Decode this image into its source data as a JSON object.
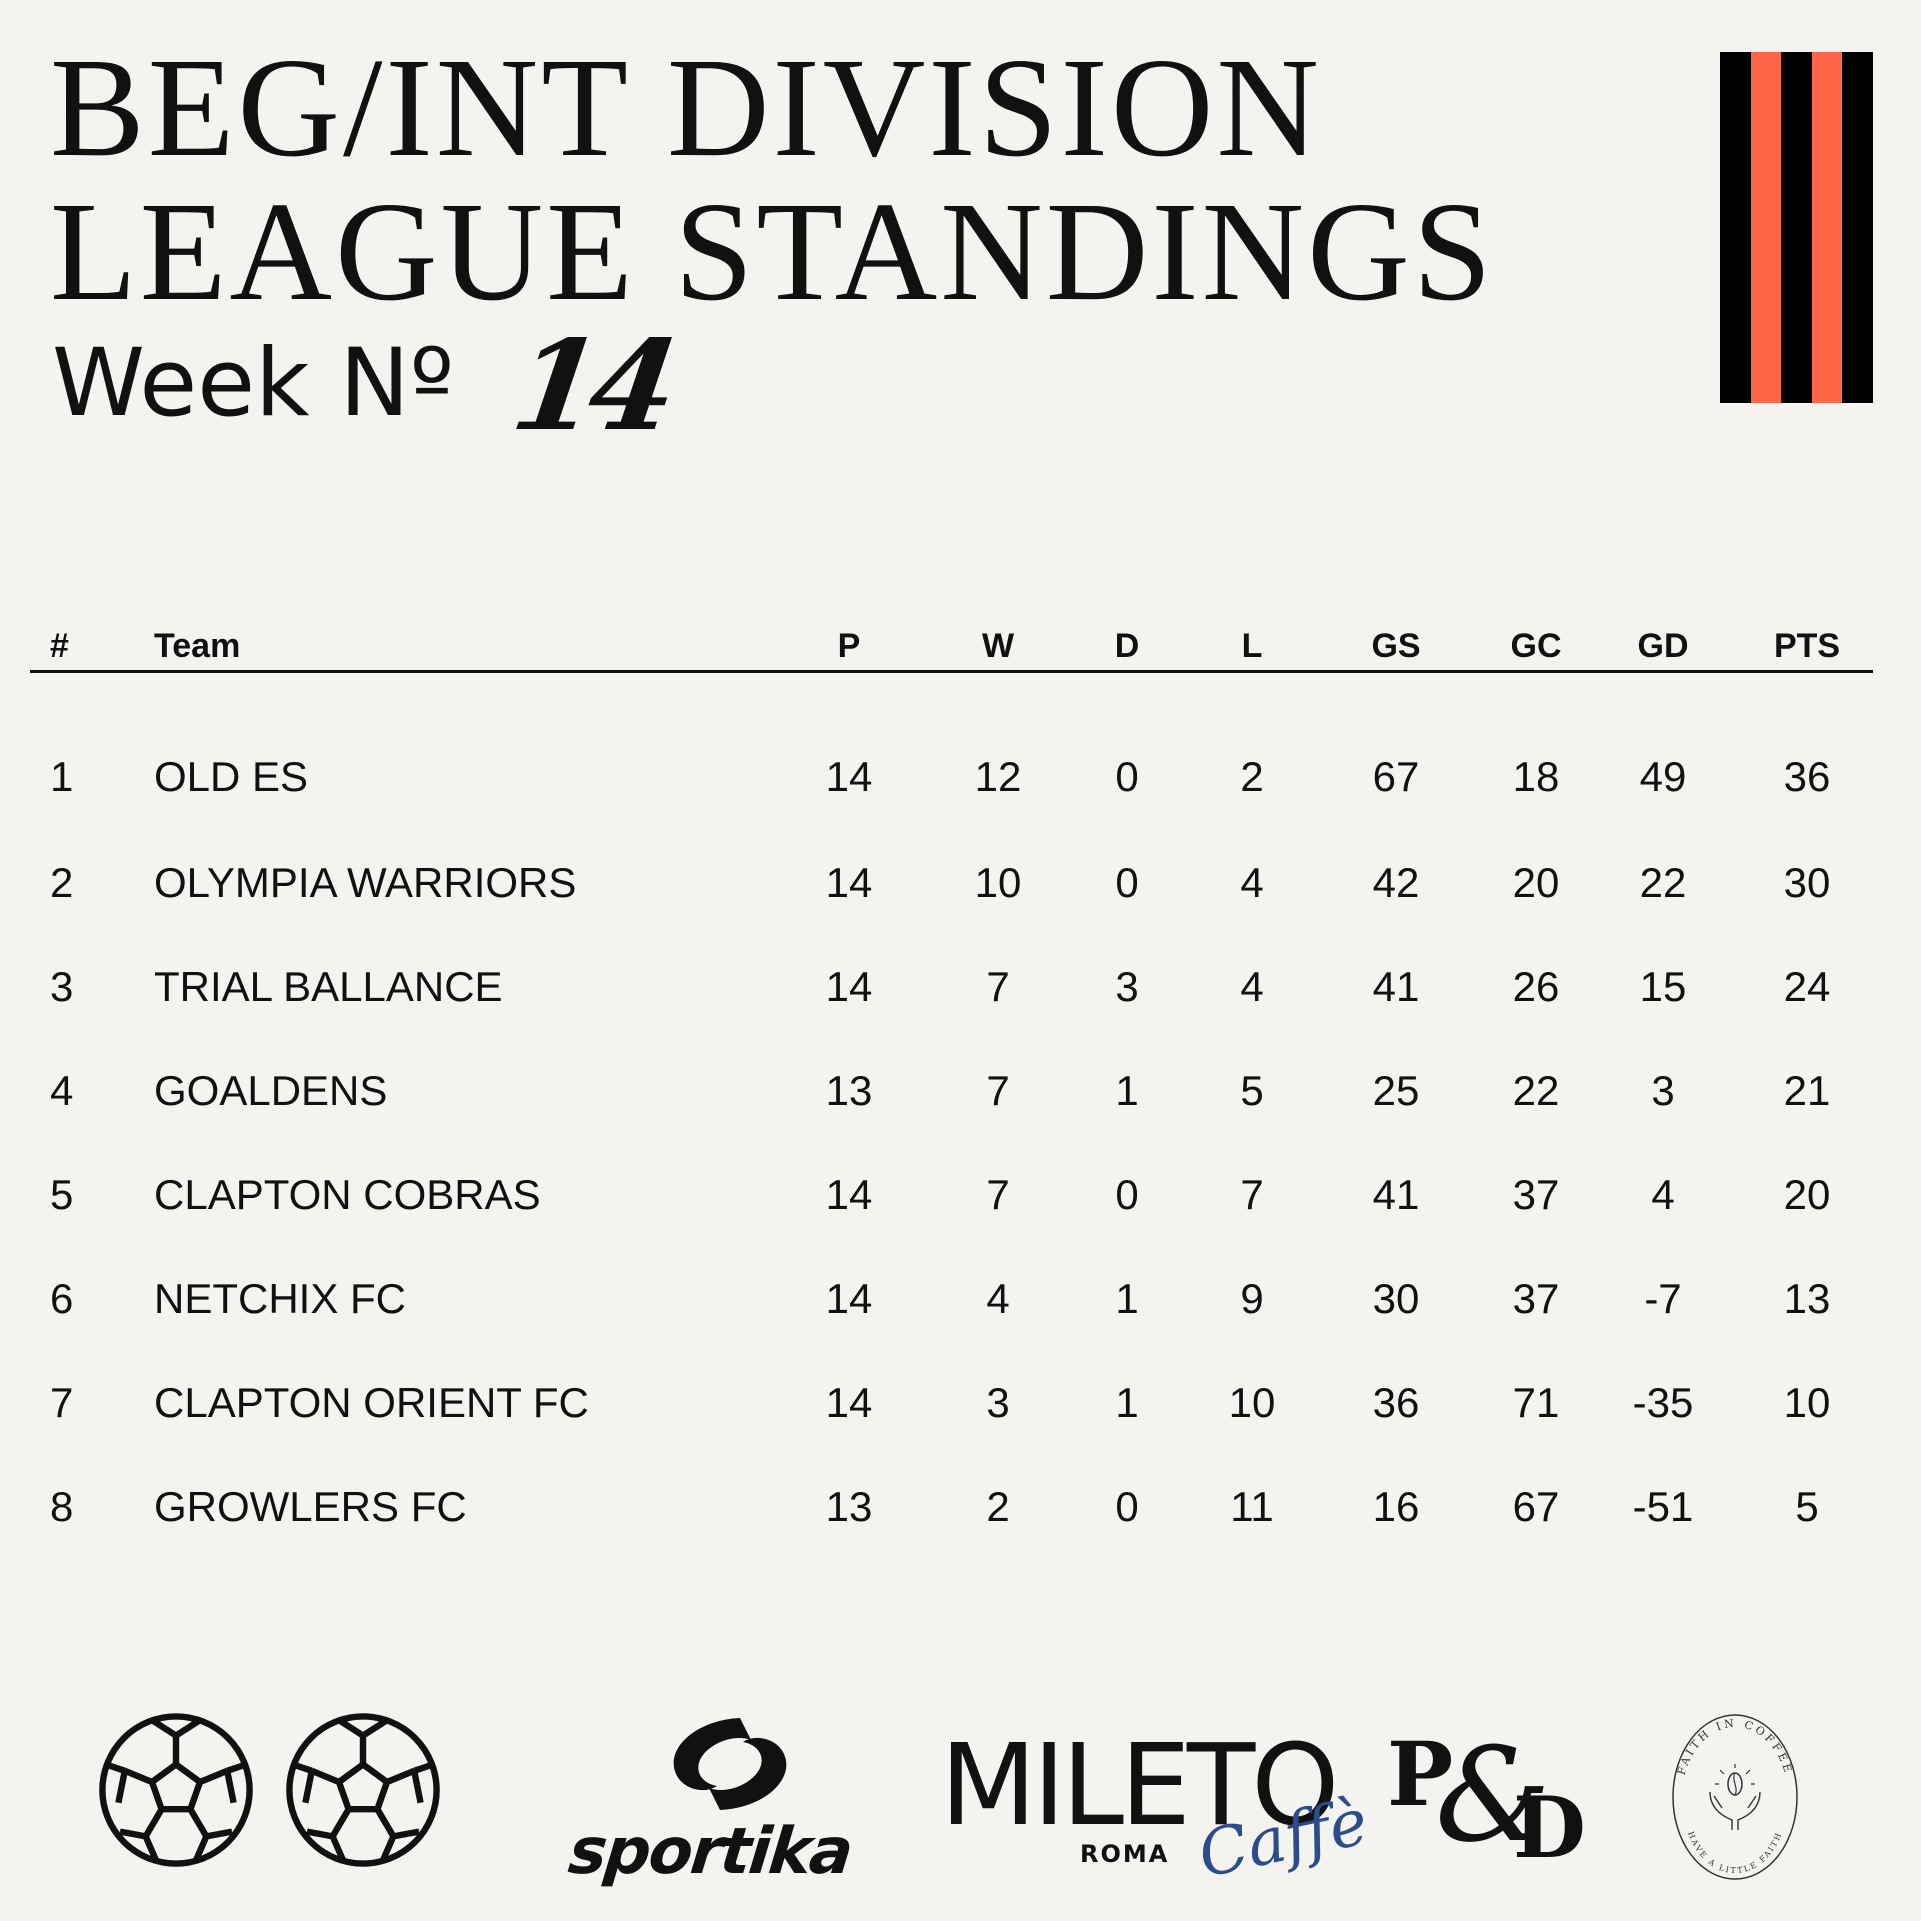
{
  "header": {
    "title_line1": "BEG/INT DIVISION",
    "title_line2": "LEAGUE STANDINGS",
    "week_label": "Week Nº",
    "week_number": "14"
  },
  "colors": {
    "background": "#f4f3ef",
    "stripe_black": "#000000",
    "stripe_orange": "#ff6647",
    "caffe_blue": "#2b4d8a"
  },
  "table": {
    "headers": [
      "#",
      "Team",
      "P",
      "W",
      "D",
      "L",
      "GS",
      "GC",
      "GD",
      "PTS"
    ],
    "rows": [
      [
        "1",
        "OLD ES",
        "14",
        "12",
        "0",
        "2",
        "67",
        "18",
        "49",
        "36"
      ],
      [
        "2",
        "OLYMPIA WARRIORS",
        "14",
        "10",
        "0",
        "4",
        "42",
        "20",
        "22",
        "30"
      ],
      [
        "3",
        "TRIAL BALLANCE",
        "14",
        "7",
        "3",
        "4",
        "41",
        "26",
        "15",
        "24"
      ],
      [
        "4",
        "GOALDENS",
        "13",
        "7",
        "1",
        "5",
        "25",
        "22",
        "3",
        "21"
      ],
      [
        "5",
        "CLAPTON COBRAS",
        "14",
        "7",
        "0",
        "7",
        "41",
        "37",
        "4",
        "20"
      ],
      [
        "6",
        "NETCHIX FC",
        "14",
        "4",
        "1",
        "9",
        "30",
        "37",
        "-7",
        "13"
      ],
      [
        "7",
        "CLAPTON ORIENT FC",
        "14",
        "3",
        "1",
        "10",
        "36",
        "71",
        "-35",
        "10"
      ],
      [
        "8",
        "GROWLERS FC",
        "13",
        "2",
        "0",
        "11",
        "16",
        "67",
        "-51",
        "5"
      ]
    ]
  },
  "sponsors": {
    "icons": [
      "soccer-ball-icon",
      "soccer-ball-icon"
    ],
    "sportika": "sportika",
    "mileto": "MILETO",
    "mileto_roma": "ROMA",
    "mileto_caffe": "Caffè",
    "pd_p": "P",
    "pd_amp": "&",
    "pd_d": "D",
    "faith_top": "FAITH IN COFFEE",
    "faith_bottom": "HAVE A LITTLE FAITH"
  }
}
